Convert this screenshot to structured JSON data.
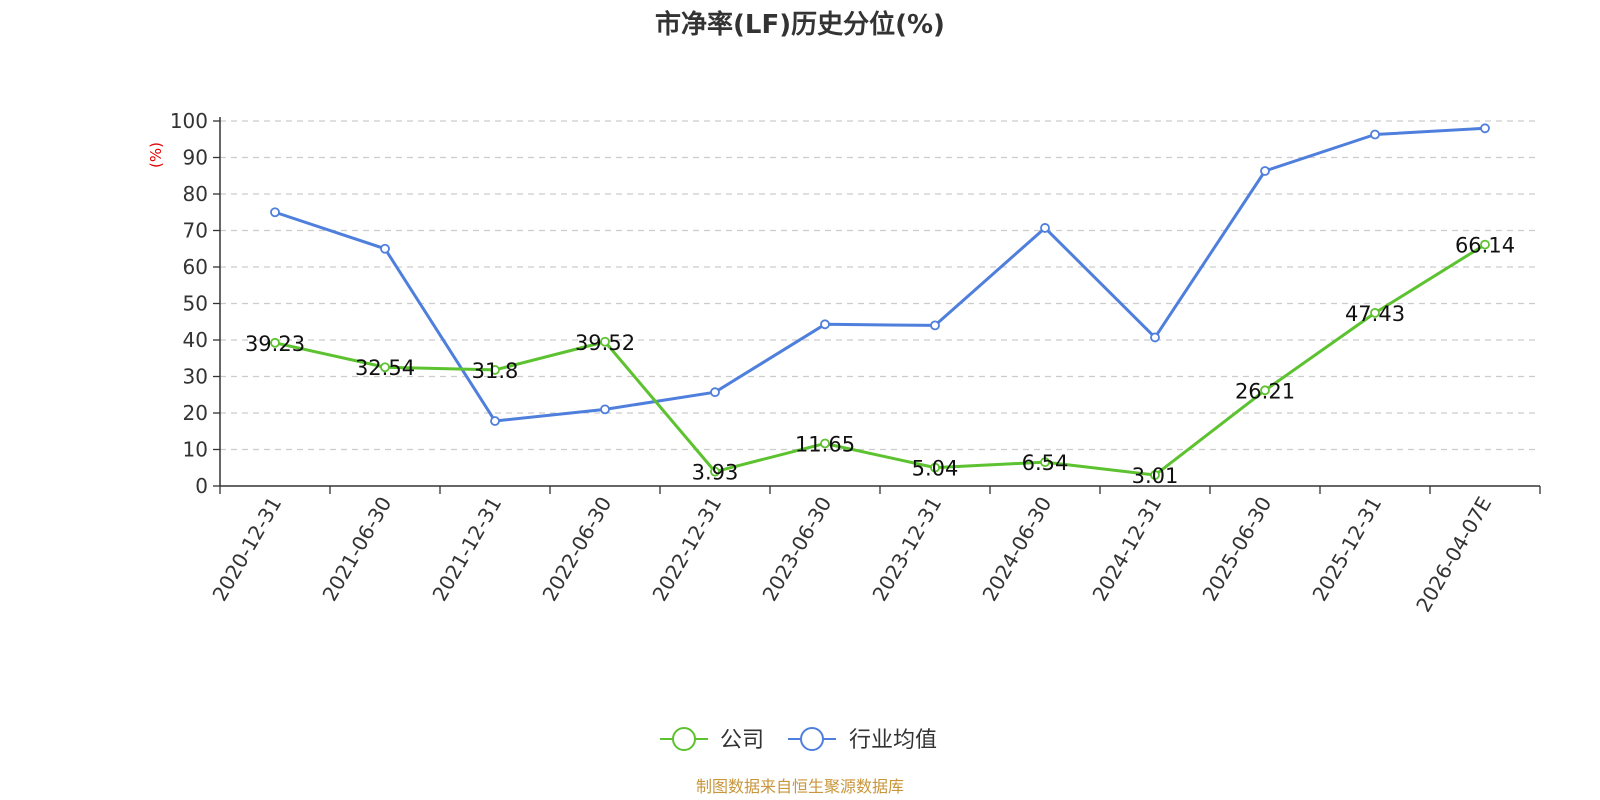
{
  "chart_data": {
    "type": "line",
    "title": "市净率(LF)历史分位(%)",
    "ylabel": "(%)",
    "ylim": [
      0,
      100
    ],
    "yticks": [
      0,
      10,
      20,
      30,
      40,
      50,
      60,
      70,
      80,
      90,
      100
    ],
    "grid": true,
    "legend_position": "bottom-center",
    "categories": [
      "2020-12-31",
      "2021-06-30",
      "2021-12-31",
      "2022-06-30",
      "2022-12-31",
      "2023-06-30",
      "2023-12-31",
      "2024-06-30",
      "2024-12-31",
      "2025-06-30",
      "2025-12-31",
      "2026-04-07E"
    ],
    "series": [
      {
        "name": "公司",
        "color": "#5cc22f",
        "values": [
          39.23,
          32.54,
          31.8,
          39.52,
          3.93,
          11.65,
          5.04,
          6.54,
          3.01,
          26.21,
          47.43,
          66.14
        ],
        "labels": [
          "39.23",
          "32.54",
          "31.8",
          "39.52",
          "3.93",
          "11.65",
          "5.04",
          "6.54",
          "3.01",
          "26.21",
          "47.43",
          "66.14"
        ]
      },
      {
        "name": "行业均值",
        "color": "#4f7fdc",
        "values": [
          75,
          65,
          17.8,
          21,
          25.7,
          44.3,
          44,
          70.7,
          40.7,
          86.3,
          96.3,
          98
        ]
      }
    ]
  },
  "source": "制图数据来自恒生聚源数据库",
  "colors": {
    "ylabel": "#e60000",
    "source": "#c8963c",
    "axis": "#333333",
    "grid": "#cccccc"
  }
}
